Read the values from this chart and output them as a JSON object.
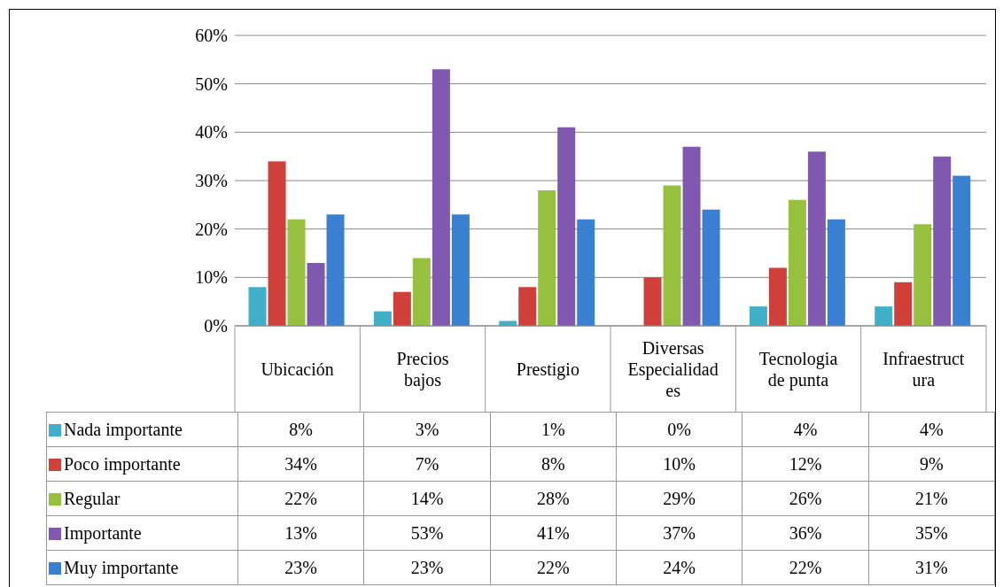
{
  "chart_data": {
    "type": "bar",
    "categories": [
      "Ubicación",
      "Precios bajos",
      "Prestigio",
      "Diversas Especialidades",
      "Tecnologia de punta",
      "Infraestructura"
    ],
    "series": [
      {
        "name": "Nada importante",
        "color": "#3fb0c8",
        "values": [
          8,
          3,
          1,
          0,
          4,
          4
        ],
        "value_labels": [
          "8%",
          "3%",
          "1%",
          "0%",
          "4%",
          "4%"
        ]
      },
      {
        "name": "Poco importante",
        "color": "#d0403a",
        "values": [
          34,
          7,
          8,
          10,
          12,
          9
        ],
        "value_labels": [
          "34%",
          "7%",
          "8%",
          "10%",
          "12%",
          "9%"
        ]
      },
      {
        "name": "Regular",
        "color": "#96c03e",
        "values": [
          22,
          14,
          28,
          29,
          26,
          21
        ],
        "value_labels": [
          "22%",
          "14%",
          "28%",
          "29%",
          "26%",
          "21%"
        ]
      },
      {
        "name": "Importante",
        "color": "#8058b0",
        "values": [
          13,
          53,
          41,
          37,
          36,
          35
        ],
        "value_labels": [
          "13%",
          "53%",
          "41%",
          "37%",
          "36%",
          "35%"
        ]
      },
      {
        "name": "Muy importante",
        "color": "#3a80d0",
        "values": [
          23,
          23,
          22,
          24,
          22,
          31
        ],
        "value_labels": [
          "23%",
          "23%",
          "22%",
          "24%",
          "22%",
          "31%"
        ]
      }
    ],
    "ylim": [
      0,
      60
    ],
    "yticks": [
      {
        "value": 0,
        "label": "0%"
      },
      {
        "value": 10,
        "label": "10%"
      },
      {
        "value": 20,
        "label": "20%"
      },
      {
        "value": 30,
        "label": "30%"
      },
      {
        "value": 40,
        "label": "40%"
      },
      {
        "value": 50,
        "label": "50%"
      },
      {
        "value": 60,
        "label": "60%"
      }
    ],
    "grid": "y",
    "legend": "bottom"
  }
}
